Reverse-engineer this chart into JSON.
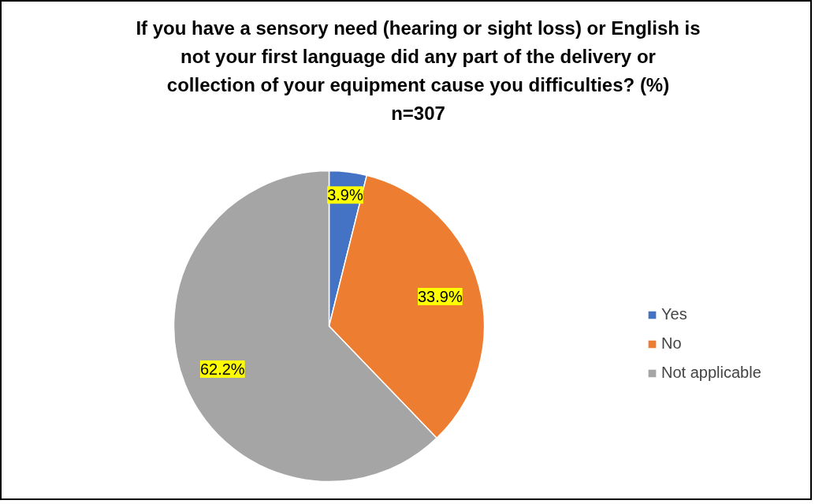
{
  "chart_data": {
    "type": "pie",
    "title": "If you have a sensory need (hearing or sight loss) or English is\nnot your first language did any part of the delivery or\ncollection of your equipment cause you difficulties? (%)\nn=307",
    "categories": [
      "Yes",
      "No",
      "Not applicable"
    ],
    "values": [
      3.9,
      33.9,
      62.2
    ],
    "colors": [
      "#4472c4",
      "#ed7d31",
      "#a5a5a5"
    ],
    "value_labels": [
      "3.9%",
      "33.9%",
      "62.2%"
    ],
    "legend": "right"
  }
}
